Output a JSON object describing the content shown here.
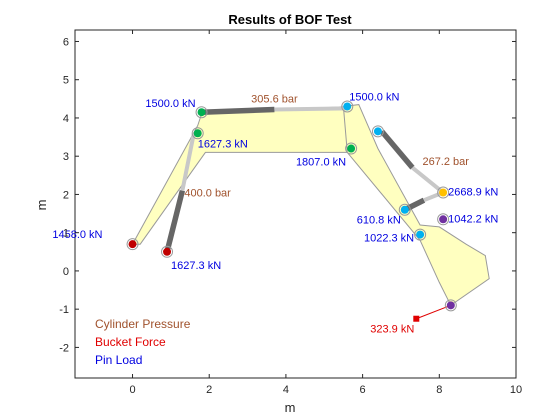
{
  "chart_data": {
    "type": "scatter",
    "title": "Results of BOF Test",
    "xlabel": "m",
    "ylabel": "m",
    "xlim": [
      -1.5,
      10
    ],
    "ylim": [
      -2.8,
      6.3
    ],
    "xticks": [
      "0",
      "2",
      "4",
      "6",
      "8",
      "10"
    ],
    "yticks": [
      "-2",
      "-1",
      "0",
      "1",
      "2",
      "3",
      "4",
      "5",
      "6"
    ],
    "xtick_values": [
      0,
      2,
      4,
      6,
      8,
      10
    ],
    "ytick_values": [
      -2,
      -1,
      0,
      1,
      2,
      3,
      4,
      5,
      6
    ],
    "grid": false,
    "colors": {
      "pressure": "#a0522d",
      "force": "#e00000",
      "pin": "#0000e0",
      "body_fill": "#ffffc0",
      "body_stroke": "#9a9a9a",
      "cyl_dark": "#666666",
      "cyl_light": "#c8c8c8"
    },
    "boom_polygon": [
      [
        0.0,
        0.7
      ],
      [
        1.7,
        3.8
      ],
      [
        1.8,
        4.1
      ],
      [
        5.6,
        4.3
      ],
      [
        5.7,
        3.3
      ],
      [
        7.3,
        1.2
      ],
      [
        7.6,
        0.7
      ],
      [
        7.2,
        1.6
      ],
      [
        5.8,
        3.1
      ],
      [
        1.9,
        3.1
      ],
      [
        0.2,
        0.7
      ]
    ],
    "stick_polygon": [
      [
        5.5,
        4.3
      ],
      [
        5.9,
        4.35
      ],
      [
        6.4,
        3.2
      ],
      [
        7.5,
        1.2
      ],
      [
        8.0,
        1.15
      ],
      [
        8.7,
        0.7
      ],
      [
        9.2,
        0.4
      ],
      [
        9.3,
        -0.2
      ],
      [
        8.3,
        -0.9
      ],
      [
        8.0,
        -0.3
      ],
      [
        7.5,
        0.8
      ],
      [
        5.6,
        3.1
      ]
    ],
    "cylinders": [
      {
        "x": [
          0.9,
          1.6
        ],
        "y": [
          0.5,
          3.6
        ],
        "rod_from": [
          1.3,
          2.1
        ]
      },
      {
        "x": [
          1.8,
          5.6
        ],
        "y": [
          4.15,
          4.25
        ],
        "rod_from": [
          3.7,
          4.22
        ]
      },
      {
        "x": [
          6.5,
          8.1
        ],
        "y": [
          3.65,
          2.05
        ],
        "rod_from": [
          7.3,
          2.7
        ]
      },
      {
        "x": [
          7.1,
          8.1
        ],
        "y": [
          1.6,
          2.05
        ],
        "rod_from": [
          7.6,
          1.85
        ]
      }
    ],
    "pins": [
      {
        "x": 0.0,
        "y": 0.7,
        "color": "#c00000",
        "label": "1458.0 kN"
      },
      {
        "x": 0.9,
        "y": 0.5,
        "color": "#c00000",
        "label": "1627.3 kN"
      },
      {
        "x": 1.7,
        "y": 3.6,
        "color": "#00b050",
        "label": "1627.3 kN"
      },
      {
        "x": 1.8,
        "y": 4.15,
        "color": "#00b050",
        "label": "1500.0 kN"
      },
      {
        "x": 5.6,
        "y": 4.3,
        "color": "#00b0f0",
        "label": "1500.0 kN"
      },
      {
        "x": 5.7,
        "y": 3.2,
        "color": "#00b050",
        "label": "1807.0 kN"
      },
      {
        "x": 6.4,
        "y": 3.65,
        "color": "#00b0f0",
        "label": ""
      },
      {
        "x": 8.1,
        "y": 2.05,
        "color": "#ffc000",
        "label": "2668.9 kN"
      },
      {
        "x": 7.1,
        "y": 1.6,
        "color": "#00b0f0",
        "label": "610.8 kN"
      },
      {
        "x": 8.1,
        "y": 1.35,
        "color": "#7030a0",
        "label": "1042.2 kN"
      },
      {
        "x": 7.5,
        "y": 0.95,
        "color": "#00b0f0",
        "label": "1022.3 kN"
      },
      {
        "x": 8.3,
        "y": -0.9,
        "color": "#7030a0",
        "label": ""
      }
    ],
    "pressures": [
      {
        "label": "305.6 bar",
        "x": 3.7,
        "y": 4.25
      },
      {
        "label": "400.0 bar",
        "x": 1.3,
        "y": 2.1
      },
      {
        "label": "267.2 bar",
        "x": 7.3,
        "y": 2.9
      }
    ],
    "bucket_force": {
      "from": [
        8.3,
        -0.9
      ],
      "to": [
        7.4,
        -1.25
      ],
      "label": "323.9 kN"
    },
    "legend": [
      {
        "label": "Cylinder Pressure",
        "color": "#a0522d"
      },
      {
        "label": "Bucket Force",
        "color": "#e00000"
      },
      {
        "label": "Pin Load",
        "color": "#0000e0"
      }
    ],
    "legend_location": "bottom-left"
  }
}
